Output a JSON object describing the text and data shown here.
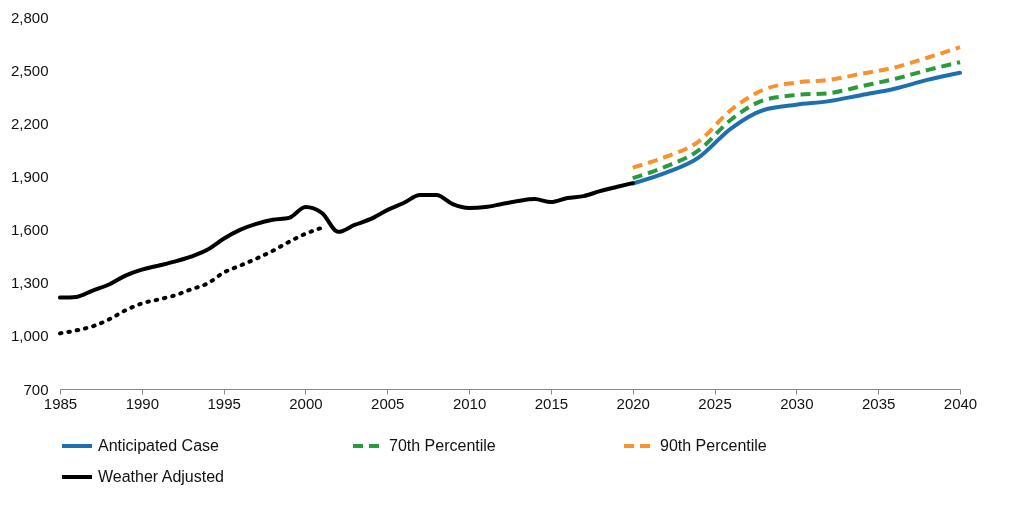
{
  "chart_data": {
    "type": "line",
    "xlim": [
      1985,
      2040
    ],
    "xticks": [
      1985,
      1990,
      1995,
      2000,
      2005,
      2010,
      2015,
      2020,
      2025,
      2030,
      2035,
      2040
    ],
    "ylim": [
      700,
      2800
    ],
    "yticks": [
      {
        "value": 700,
        "label": "700"
      },
      {
        "value": 1000,
        "label": "1,000"
      },
      {
        "value": 1300,
        "label": "1,300"
      },
      {
        "value": 1600,
        "label": "1,600"
      },
      {
        "value": 1900,
        "label": "1,900"
      },
      {
        "value": 2200,
        "label": "2,200"
      },
      {
        "value": 2500,
        "label": "2,500"
      },
      {
        "value": 2800,
        "label": "2,800"
      }
    ],
    "grid": false,
    "legend": "bottom",
    "marker": "none",
    "series": [
      {
        "name": "Anticipated Case",
        "color": "#1f6fb0",
        "line_style": "solid",
        "x": [
          2020,
          2022,
          2024,
          2026,
          2028,
          2030,
          2032,
          2034,
          2036,
          2038,
          2040
        ],
        "values": [
          1860,
          1920,
          2005,
          2170,
          2275,
          2305,
          2325,
          2360,
          2395,
          2445,
          2485
        ]
      },
      {
        "name": "70th Percentile",
        "color": "#2a9a3a",
        "line_style": "dashed",
        "x": [
          2020,
          2022,
          2024,
          2026,
          2028,
          2030,
          2032,
          2034,
          2036,
          2038,
          2040
        ],
        "values": [
          1890,
          1955,
          2045,
          2220,
          2330,
          2360,
          2370,
          2410,
          2450,
          2500,
          2545
        ]
      },
      {
        "name": "90th Percentile",
        "color": "#f7922f",
        "line_style": "dashed",
        "x": [
          2020,
          2022,
          2024,
          2026,
          2028,
          2030,
          2032,
          2034,
          2036,
          2038,
          2040
        ],
        "values": [
          1950,
          2010,
          2095,
          2275,
          2390,
          2430,
          2445,
          2480,
          2515,
          2570,
          2630
        ]
      },
      {
        "color": "#000000",
        "line_style": "dotted",
        "x": [
          1985,
          1986,
          1987,
          1988,
          1989,
          1990,
          1991,
          1992,
          1993,
          1994,
          1995,
          1996,
          1997,
          1998,
          1999,
          2000,
          2001
        ],
        "values": [
          1014,
          1031,
          1054,
          1093,
          1144,
          1183,
          1205,
          1228,
          1262,
          1295,
          1357,
          1396,
          1436,
          1480,
          1531,
          1576,
          1610
        ]
      },
      {
        "name": "Weather Adjusted",
        "color": "#000000",
        "line_style": "solid",
        "x": [
          1985,
          1986,
          1987,
          1988,
          1989,
          1990,
          1991,
          1992,
          1993,
          1994,
          1995,
          1996,
          1997,
          1998,
          1999,
          2000,
          2001,
          2002,
          2003,
          2004,
          2005,
          2006,
          2007,
          2008,
          2009,
          2010,
          2011,
          2012,
          2013,
          2014,
          2015,
          2016,
          2017,
          2018,
          2019,
          2020
        ],
        "values": [
          1216,
          1220,
          1256,
          1290,
          1340,
          1374,
          1396,
          1419,
          1447,
          1486,
          1548,
          1598,
          1632,
          1655,
          1666,
          1727,
          1694,
          1587,
          1626,
          1660,
          1710,
          1750,
          1795,
          1795,
          1744,
          1722,
          1727,
          1744,
          1761,
          1772,
          1755,
          1778,
          1789,
          1817,
          1840,
          1862
        ]
      }
    ]
  }
}
